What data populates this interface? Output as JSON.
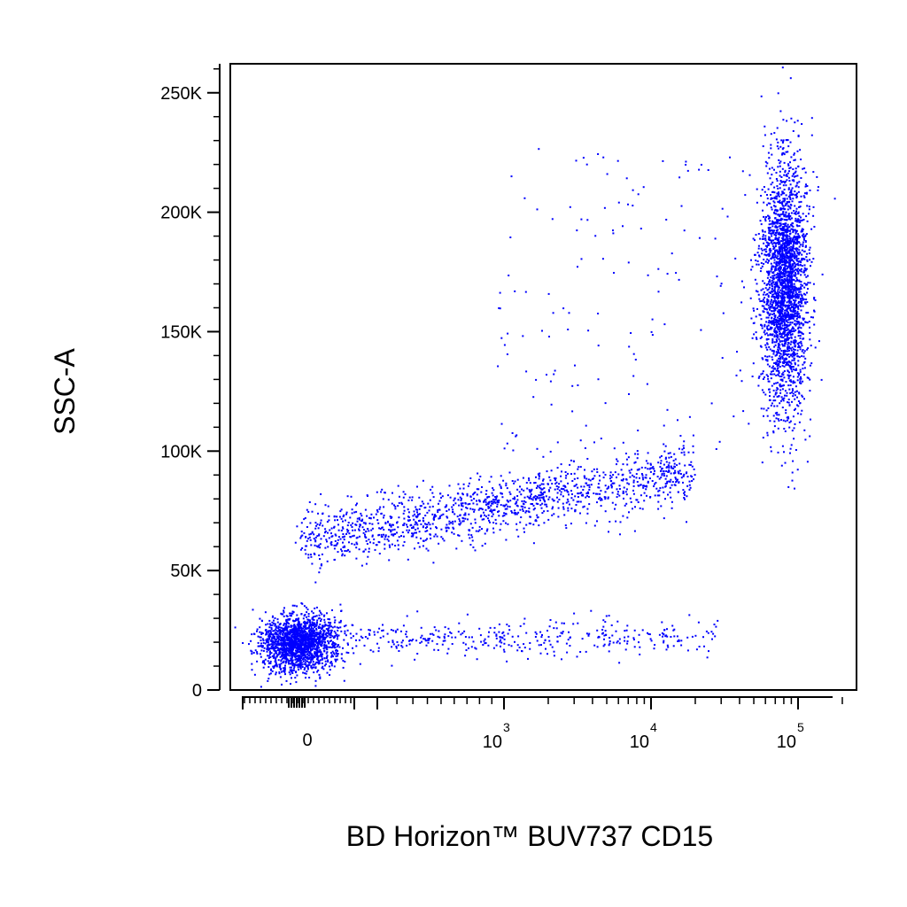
{
  "chart_data": {
    "type": "scatter",
    "title": "",
    "xlabel": "BD Horizon™ BUV737 CD15",
    "ylabel": "SSC-A",
    "x_scale": "biexponential",
    "y_scale": "linear",
    "ylim": [
      0,
      262144
    ],
    "xlim": [
      -200,
      262144
    ],
    "x_ticks": [
      {
        "value": 0,
        "label": "0",
        "base": "",
        "exp": ""
      },
      {
        "value": 1000,
        "label": "10^3",
        "base": "10",
        "exp": "3"
      },
      {
        "value": 10000,
        "label": "10^4",
        "base": "10",
        "exp": "4"
      },
      {
        "value": 100000,
        "label": "10^5",
        "base": "10",
        "exp": "5"
      }
    ],
    "y_ticks": [
      {
        "value": 0,
        "label": "0"
      },
      {
        "value": 50000,
        "label": "50K"
      },
      {
        "value": 100000,
        "label": "100K"
      },
      {
        "value": 150000,
        "label": "150K"
      },
      {
        "value": 200000,
        "label": "200K"
      },
      {
        "value": 250000,
        "label": "250K"
      }
    ],
    "colormap": [
      "#0000ff",
      "#00b4ff",
      "#00ff80",
      "#ffff00",
      "#ff8000",
      "#ff0000"
    ],
    "grid": false,
    "populations": [
      {
        "name": "",
        "x_center": 0,
        "y_center": 20000,
        "count": 1800
      },
      {
        "name": "",
        "x_center": 80000,
        "y_center": 170000,
        "count": 2600
      },
      {
        "name": "",
        "x_center": 2500,
        "y_center": 80000,
        "count": 1400
      },
      {
        "name": "",
        "x_center": 2000,
        "y_center": 22000,
        "count": 350
      }
    ]
  }
}
